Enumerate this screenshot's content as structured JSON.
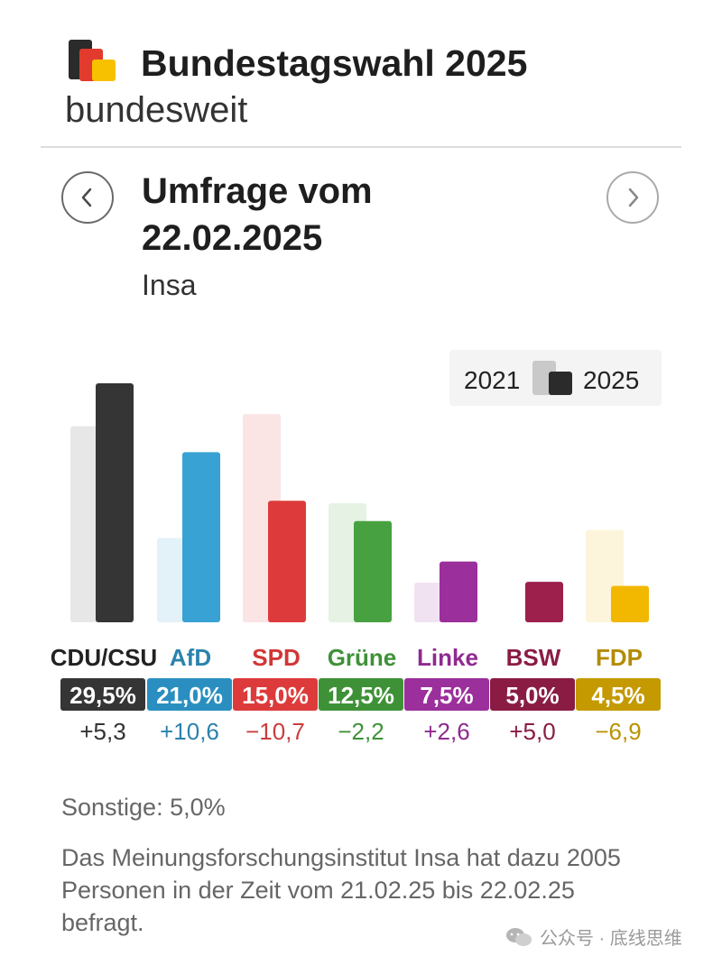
{
  "header": {
    "title": "Bundestagswahl 2025",
    "subtitle": "bundesweit"
  },
  "poll": {
    "title": "Umfrage vom 22.02.2025",
    "institute": "Insa"
  },
  "legend": {
    "previous_label": "2021",
    "current_label": "2025"
  },
  "chart_data": {
    "type": "bar",
    "categories": [
      "CDU/CSU",
      "AfD",
      "SPD",
      "Grüne",
      "Linke",
      "BSW",
      "FDP"
    ],
    "series": [
      {
        "name": "2021",
        "values": [
          24.2,
          10.4,
          25.7,
          14.7,
          4.9,
          0.0,
          11.4
        ]
      },
      {
        "name": "2025",
        "values": [
          29.5,
          21.0,
          15.0,
          12.5,
          7.5,
          5.0,
          4.5
        ]
      }
    ],
    "value_labels": [
      "29,5%",
      "21,0%",
      "15,0%",
      "12,5%",
      "7,5%",
      "5,0%",
      "4,5%"
    ],
    "change_labels": [
      "+5,3",
      "+10,6",
      "−10,7",
      "−2,2",
      "+2,6",
      "+5,0",
      "−6,9"
    ],
    "colors": [
      "#353535",
      "#37a2d3",
      "#dd3b3b",
      "#48a141",
      "#9b2f9b",
      "#9c1f4c",
      "#f2b800"
    ],
    "label_colors": [
      "#222222",
      "#2a83ad",
      "#d23636",
      "#3f9138",
      "#8f2a8f",
      "#8a1c44",
      "#b28c00"
    ],
    "badge_colors": [
      "#353535",
      "#2a8fc0",
      "#dd3b3b",
      "#3f9138",
      "#9b2f9b",
      "#8a1c44",
      "#c49a00"
    ],
    "change_colors": [
      "#333333",
      "#2a83ad",
      "#cc3c3c",
      "#3f9138",
      "#8f2a8f",
      "#8a1c44",
      "#b99300"
    ],
    "ylim": [
      0,
      30
    ],
    "grid": false,
    "legend_position": "top-right"
  },
  "footer": {
    "other": "Sonstige: 5,0%",
    "note": "Das Meinungsforschungsinstitut Insa hat dazu 2005 Personen in der Zeit vom 21.02.25 bis 22.02.25 befragt."
  },
  "watermark": {
    "text": "公众号 · 底线思维"
  },
  "icons": {
    "logo": "flag-bars-icon",
    "prev": "chevron-left-icon",
    "next": "chevron-right-icon",
    "watermark": "wechat-icon"
  }
}
